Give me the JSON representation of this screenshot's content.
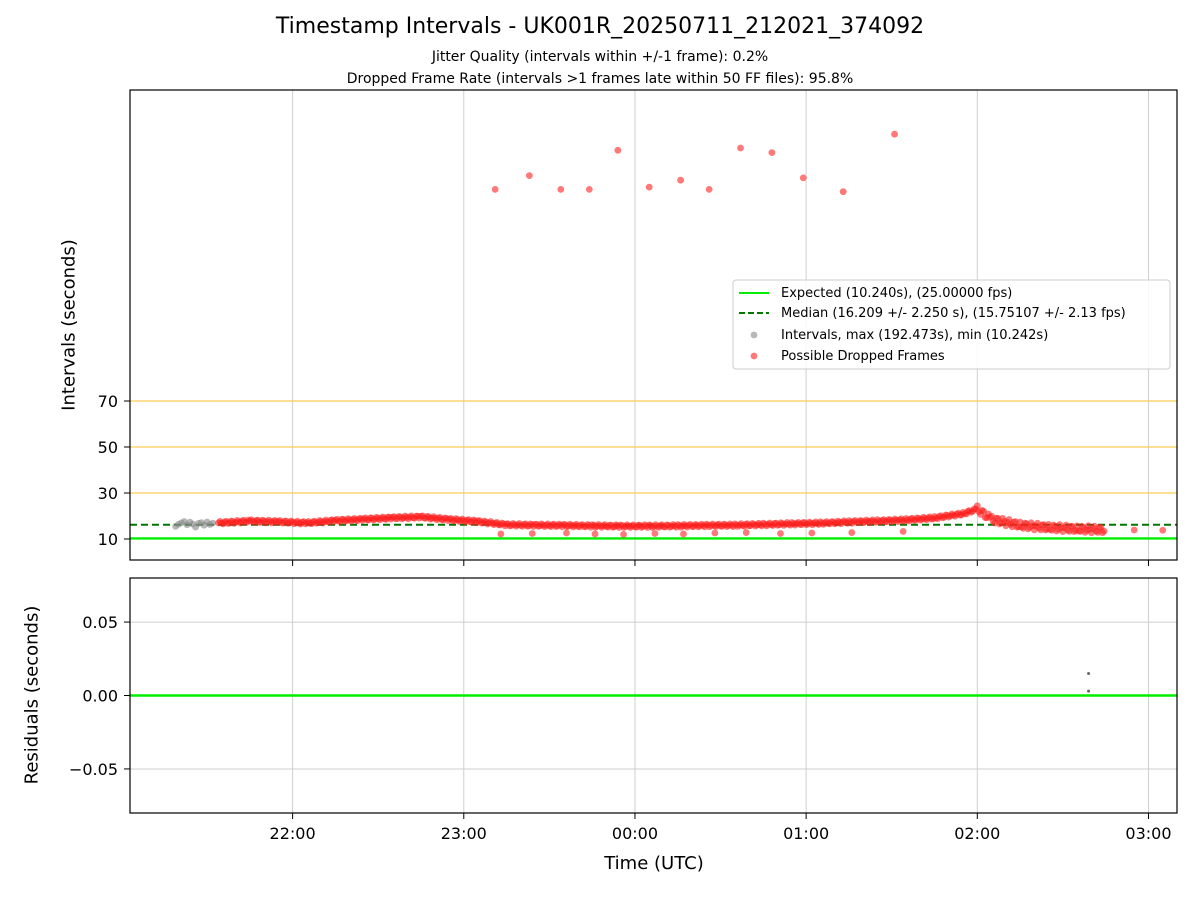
{
  "figure": {
    "title": "Timestamp Intervals - UK001R_20250711_212021_374092",
    "subtitle_1": "Jitter Quality (intervals within +/-1 frame): 0.2%",
    "subtitle_2": "Dropped Frame Rate (intervals >1 frames late within 50 FF files): 95.8%"
  },
  "chart_data": [
    {
      "type": "scatter",
      "panel": "intervals",
      "ylabel": "Intervals (seconds)",
      "yticks": [
        10,
        30,
        50,
        70
      ],
      "xticks": [
        "22:00",
        "23:00",
        "00:00",
        "01:00",
        "02:00",
        "03:00"
      ],
      "xlim": [
        "21:03",
        "03:10"
      ],
      "grid": "vertical",
      "legend_position": "center-right",
      "colors": {
        "expected": "#00ee00",
        "median": "#007700",
        "intervals": "#888888",
        "dropped": "#ff2020",
        "thresholds": "#ffcc55"
      },
      "reference_lines": [
        {
          "name": "Expected (10.240s), (25.00000 fps)",
          "y": 10.24,
          "style": "solid"
        },
        {
          "name": "Median (16.209 +/- 2.250 s), (15.75107 +/- 2.13 fps)",
          "y": 16.209,
          "style": "dashed"
        }
      ],
      "threshold_lines": [
        30,
        50,
        70
      ],
      "series": [
        {
          "name": "Intervals, max (192.473s), min (10.242s)",
          "points": [
            [
              "21:19",
              15.5
            ],
            [
              "21:20",
              16.4
            ],
            [
              "21:21",
              17.0
            ],
            [
              "21:22",
              17.6
            ],
            [
              "21:23",
              16.2
            ],
            [
              "21:24",
              17.3
            ],
            [
              "21:25",
              16.5
            ],
            [
              "21:26",
              15.2
            ],
            [
              "21:27",
              16.8
            ],
            [
              "21:28",
              17.1
            ],
            [
              "21:29",
              16.0
            ],
            [
              "21:30",
              17.4
            ],
            [
              "21:31",
              16.3
            ],
            [
              "21:32",
              16.9
            ]
          ]
        },
        {
          "name": "Possible Dropped Frames",
          "points": [
            [
              "23:11",
              162
            ],
            [
              "23:23",
              168
            ],
            [
              "23:34",
              162
            ],
            [
              "23:44",
              162
            ],
            [
              "23:54",
              179
            ],
            [
              "00:05",
              163
            ],
            [
              "00:16",
              166
            ],
            [
              "00:26",
              162
            ],
            [
              "00:37",
              180
            ],
            [
              "00:48",
              178
            ],
            [
              "00:59",
              167
            ],
            [
              "01:13",
              161
            ],
            [
              "01:31",
              186
            ],
            [
              "23:13",
              12.2
            ],
            [
              "23:24",
              12.4
            ],
            [
              "23:36",
              12.6
            ],
            [
              "23:46",
              12.2
            ],
            [
              "23:56",
              12.0
            ],
            [
              "00:07",
              12.4
            ],
            [
              "00:17",
              12.2
            ],
            [
              "00:28",
              12.6
            ],
            [
              "00:39",
              12.8
            ],
            [
              "00:51",
              12.4
            ],
            [
              "01:02",
              12.6
            ],
            [
              "01:16",
              12.8
            ],
            [
              "01:34",
              13.3
            ],
            [
              "21:34",
              17.0
            ],
            [
              "21:45",
              17.8
            ],
            [
              "21:55",
              17.5
            ],
            [
              "22:05",
              17.0
            ],
            [
              "22:15",
              18.0
            ],
            [
              "22:25",
              18.6
            ],
            [
              "22:35",
              19.2
            ],
            [
              "22:45",
              19.6
            ],
            [
              "22:55",
              18.5
            ],
            [
              "23:05",
              17.6
            ],
            [
              "23:15",
              16.2
            ],
            [
              "23:25",
              16.0
            ],
            [
              "23:35",
              15.9
            ],
            [
              "23:45",
              15.7
            ],
            [
              "23:55",
              15.6
            ],
            [
              "00:05",
              15.6
            ],
            [
              "00:15",
              15.7
            ],
            [
              "00:25",
              15.9
            ],
            [
              "00:35",
              16.0
            ],
            [
              "00:45",
              16.3
            ],
            [
              "00:55",
              16.6
            ],
            [
              "01:05",
              16.9
            ],
            [
              "01:15",
              17.4
            ],
            [
              "01:25",
              17.8
            ],
            [
              "01:35",
              18.3
            ],
            [
              "01:45",
              19.2
            ],
            [
              "01:55",
              21.0
            ],
            [
              "02:00",
              23.0
            ],
            [
              "02:05",
              18.5
            ],
            [
              "02:15",
              16.0
            ],
            [
              "02:25",
              15.0
            ],
            [
              "02:35",
              14.4
            ],
            [
              "02:45",
              14.0
            ],
            [
              "02:55",
              13.9
            ],
            [
              "03:05",
              13.8
            ]
          ]
        }
      ]
    },
    {
      "type": "scatter",
      "panel": "residuals",
      "ylabel": "Residuals (seconds)",
      "xlabel": "Time (UTC)",
      "yticks": [
        "0.05",
        "0.00",
        "−0.05"
      ],
      "ylim": [
        -0.08,
        0.08
      ],
      "grid": "both",
      "series": [
        {
          "name": "residuals",
          "points": [
            [
              "02:39",
              0.015
            ],
            [
              "02:39",
              0.003
            ]
          ]
        }
      ]
    }
  ]
}
